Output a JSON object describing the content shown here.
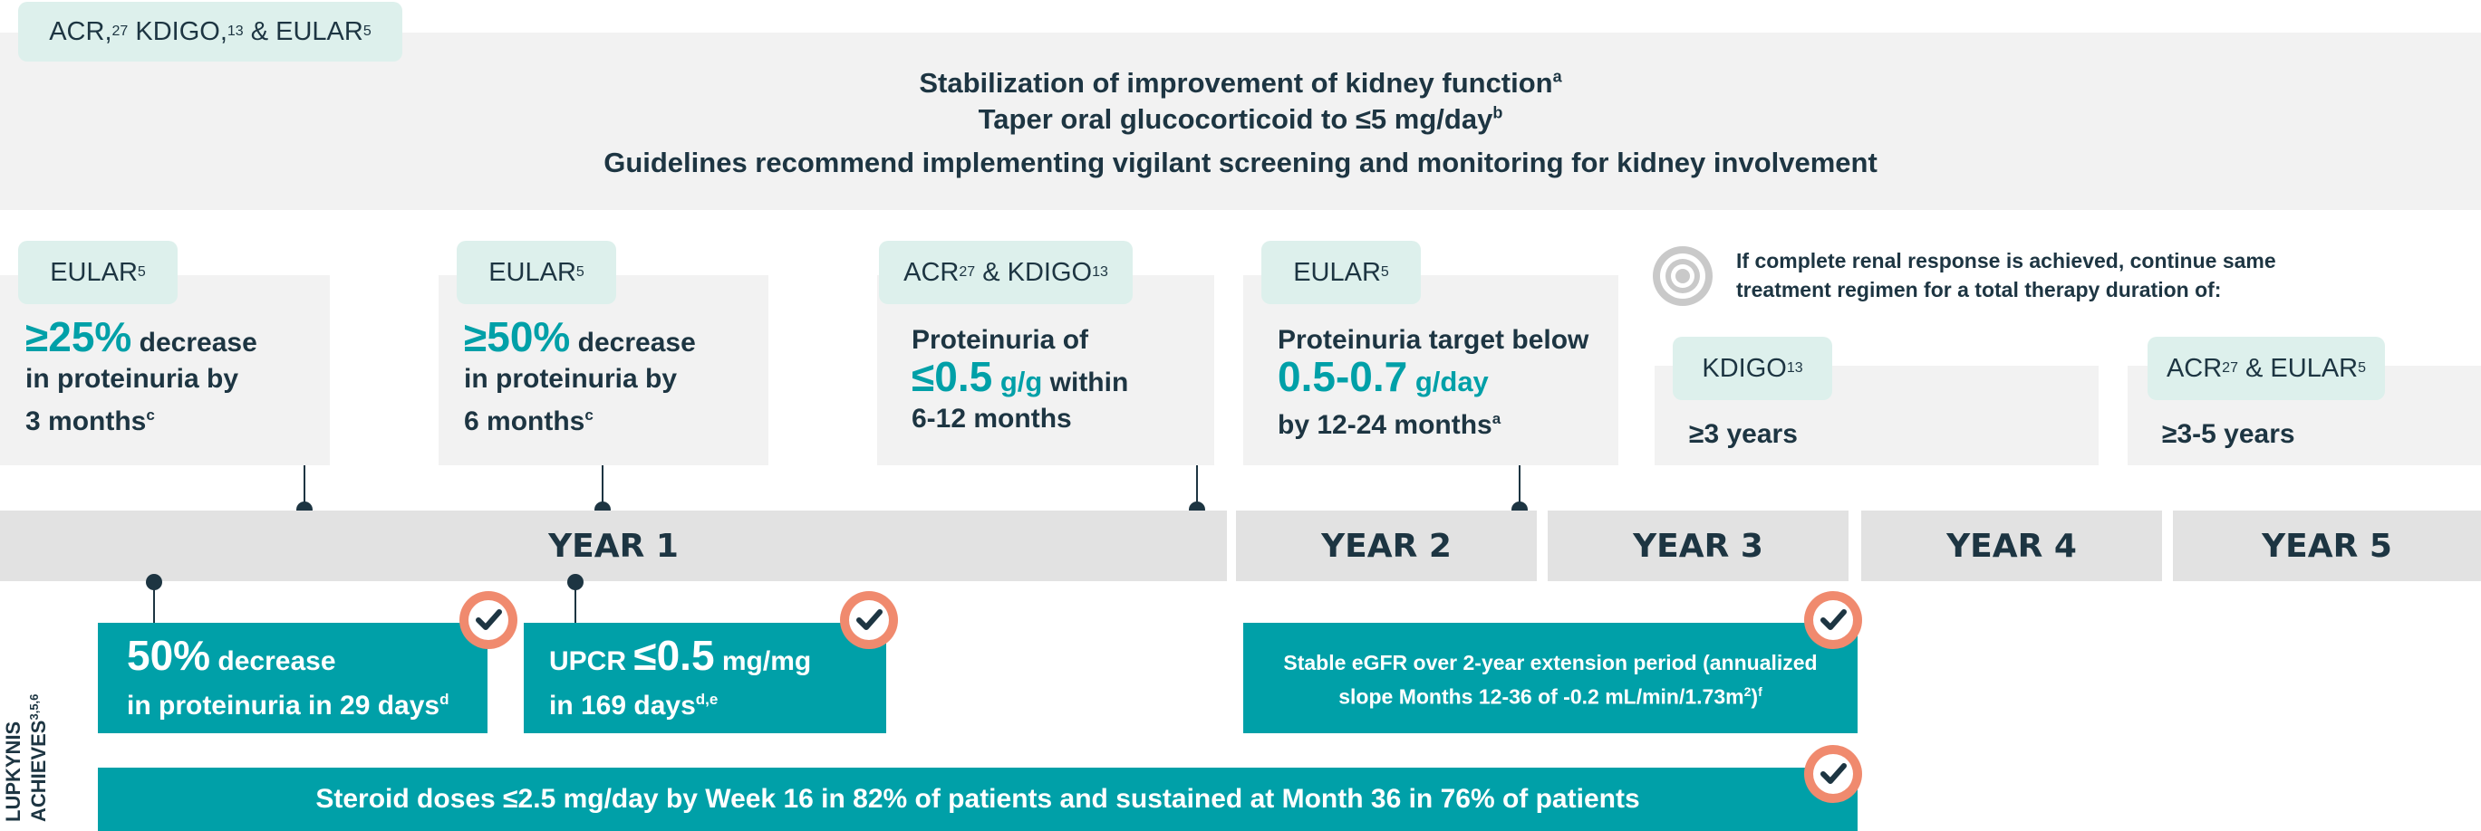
{
  "top_tag": {
    "text": "ACR,",
    "sup1": "27",
    "text2": " KDIGO,",
    "sup2": "13",
    "text3": " & EULAR",
    "sup3": "5"
  },
  "top_lines": {
    "line1": "Stabilization of improvement of kidney function",
    "line1_sup": "a",
    "line2": "Taper oral glucocorticoid to ≤5 mg/day",
    "line2_sup": "b",
    "line3": "Guidelines recommend implementing vigilant screening and monitoring for kidney involvement"
  },
  "cards": [
    {
      "tag": "EULAR",
      "tag_sup": "5",
      "big": "≥25%",
      "text1": " decrease",
      "text2": "in proteinuria by",
      "text3": "3 months",
      "sup": "c"
    },
    {
      "tag": "EULAR",
      "tag_sup": "5",
      "big": "≥50%",
      "text1": " decrease",
      "text2": "in proteinuria by",
      "text3": "6 months",
      "sup": "c"
    },
    {
      "tag": "ACR",
      "tag_sup": "27",
      "tag2": " & KDIGO",
      "tag_sup2": "13",
      "text1": "Proteinuria of",
      "big": "≤0.5",
      "mid": " g/g",
      "text2": " within",
      "text3": "6-12 months"
    },
    {
      "tag": "EULAR",
      "tag_sup": "5",
      "text1": "Proteinuria target below",
      "big": "0.5-0.7",
      "mid": " g/day",
      "text3": "by 12-24 months",
      "sup": "a"
    }
  ],
  "renal_note": {
    "line1": "If complete renal response is achieved, continue same",
    "line2": "treatment regimen for a total therapy duration of:"
  },
  "duration_cards": [
    {
      "tag": "KDIGO",
      "tag_sup": "13",
      "value": "≥3 years"
    },
    {
      "tag": "ACR",
      "tag_sup": "27",
      "tag2": " & EULAR",
      "tag_sup2": "5",
      "value": "≥3-5 years"
    }
  ],
  "years": [
    "YEAR 1",
    "YEAR 2",
    "YEAR 3",
    "YEAR 4",
    "YEAR 5"
  ],
  "side_label": {
    "line1": "LUPKYNIS",
    "line2": "ACHIEVES",
    "sup": "3,5,6"
  },
  "achievements": [
    {
      "big": "50%",
      "text1": " decrease",
      "text2": "in proteinuria in 29 days",
      "sup": "d"
    },
    {
      "text0": "UPCR ",
      "big": "≤0.5",
      "text1": " mg/mg",
      "text2": "in 169 days",
      "sup": "d,e"
    },
    {
      "line1": "Stable eGFR over 2-year extension period (annualized",
      "line2": "slope Months 12-36 of -0.2 mL/min/1.73m",
      "sup2": "2",
      "line2b": ")",
      "sup": "f"
    },
    {
      "text": "Steroid doses ≤2.5 mg/day by Week 16 in 82% of patients and sustained at Month 36 in 76% of patients"
    }
  ],
  "icons": {
    "check": "check-badge-icon",
    "target": "target-icon"
  },
  "colors": {
    "teal": "#00a0a8",
    "navy": "#1d3542",
    "tag_bg": "#ddf0ec",
    "card_bg": "#f2f2f2",
    "year_bg": "#e2e2e2",
    "check_ring": "#f08a6e"
  }
}
